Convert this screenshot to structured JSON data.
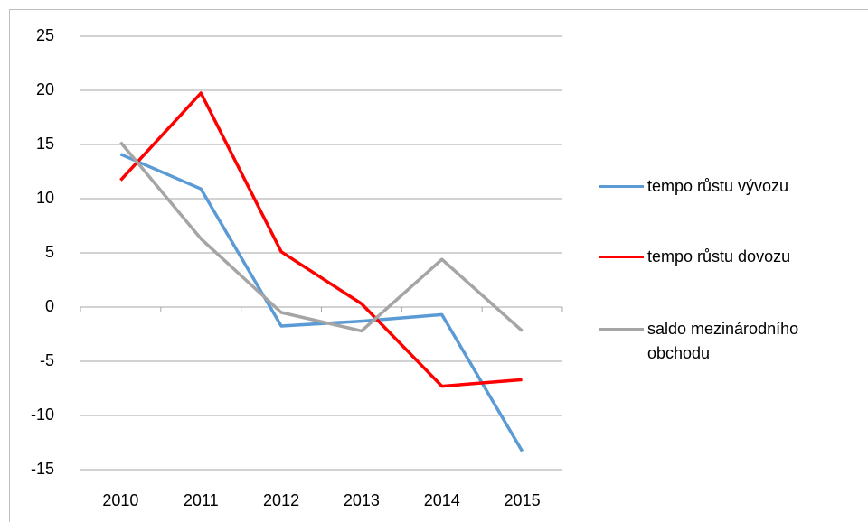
{
  "chart_data": {
    "type": "line",
    "categories": [
      "2010",
      "2011",
      "2012",
      "2013",
      "2014",
      "2015"
    ],
    "series": [
      {
        "name": "tempo růstu vývozu",
        "color": "#5b9bd5",
        "values": [
          14.1,
          10.9,
          -1.75,
          -1.3,
          -0.7,
          -13.3
        ]
      },
      {
        "name": "tempo růstu dovozu",
        "color": "#ff0000",
        "values": [
          11.7,
          19.75,
          5.1,
          0.3,
          -7.3,
          -6.7
        ]
      },
      {
        "name": "saldo mezinárodního obchodu",
        "color": "#a5a5a5",
        "values": [
          15.2,
          6.3,
          -0.5,
          -2.2,
          4.4,
          -2.2
        ]
      }
    ],
    "ylim": [
      -15,
      25
    ],
    "yticks": [
      -15,
      -10,
      -5,
      0,
      5,
      10,
      15,
      20,
      25
    ],
    "grid": true,
    "legend": "right"
  }
}
